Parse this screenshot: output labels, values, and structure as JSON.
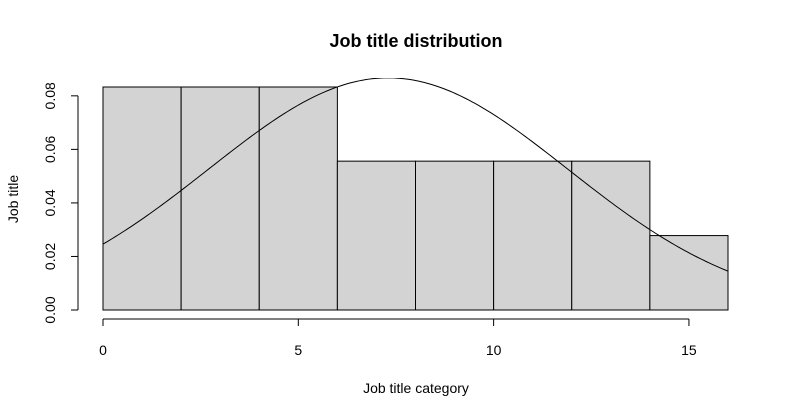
{
  "chart_data": {
    "type": "bar",
    "title": "Job title distribution",
    "xlabel": "Job title category",
    "ylabel": "Job title",
    "xlim": [
      0,
      16
    ],
    "ylim": [
      0,
      0.0833
    ],
    "bins": [
      {
        "x0": 0,
        "x1": 2,
        "density": 0.0833
      },
      {
        "x0": 2,
        "x1": 4,
        "density": 0.0833
      },
      {
        "x0": 4,
        "x1": 6,
        "density": 0.0833
      },
      {
        "x0": 6,
        "x1": 8,
        "density": 0.0556
      },
      {
        "x0": 8,
        "x1": 10,
        "density": 0.0556
      },
      {
        "x0": 10,
        "x1": 12,
        "density": 0.0556
      },
      {
        "x0": 12,
        "x1": 14,
        "density": 0.0556
      },
      {
        "x0": 14,
        "x1": 16,
        "density": 0.0278
      }
    ],
    "x_ticks": [
      0,
      5,
      10,
      15
    ],
    "x_tick_labels": [
      "0",
      "5",
      "10",
      "15"
    ],
    "y_ticks": [
      0,
      0.02,
      0.04,
      0.06,
      0.08
    ],
    "y_tick_labels": [
      "0.00",
      "0.02",
      "0.04",
      "0.06",
      "0.08"
    ],
    "overlay_curve": {
      "type": "normal_density",
      "mean": 7.3,
      "sd": 4.6
    },
    "bar_fill": "#d3d3d3",
    "line_color": "#000000",
    "grid": false
  }
}
